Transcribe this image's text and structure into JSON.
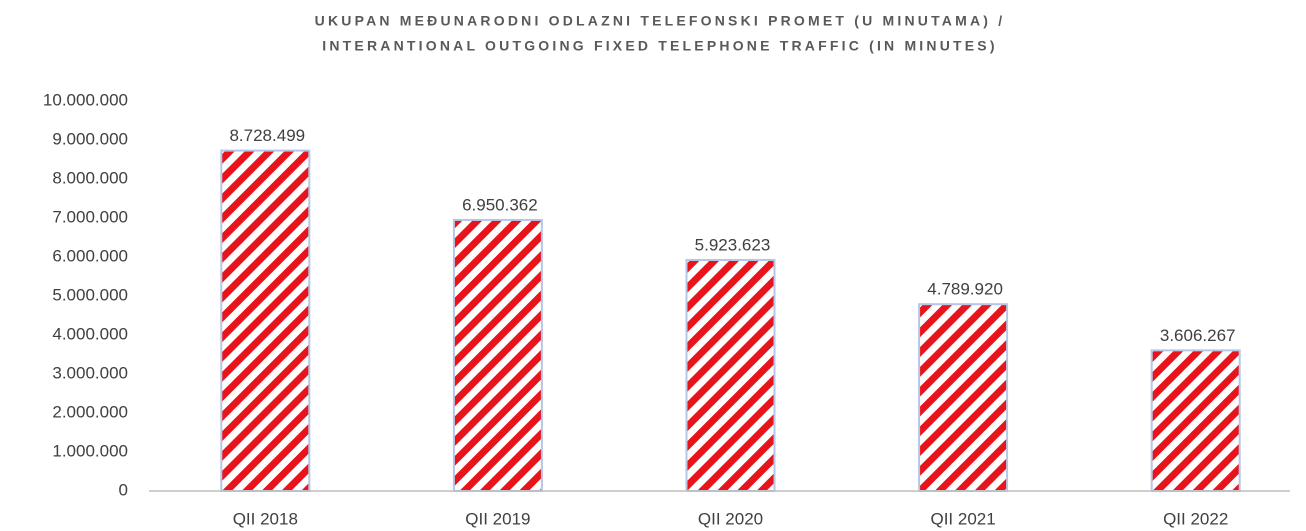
{
  "chart_data": {
    "type": "bar",
    "title": [
      "UKUPAN MEĐUNARODNI ODLAZNI TELEFONSKI PROMET (U MINUTAMA) /",
      "INTERANTIONAL OUTGOING FIXED TELEPHONE TRAFFIC (IN MINUTES)"
    ],
    "categories": [
      "QII 2018",
      "QII 2019",
      "QII 2020",
      "QII 2021",
      "QII 2022"
    ],
    "values": [
      8728499,
      6950362,
      5923623,
      4789920,
      3606267
    ],
    "value_labels": [
      "8.728.499",
      "6.950.362",
      "5.923.623",
      "4.789.920",
      "3.606.267"
    ],
    "color": "#e8141c",
    "ylim": [
      0,
      10000000
    ],
    "yticks": [
      0,
      {
        "value": 1000000,
        "label": "1.000.000"
      },
      {
        "value": 2000000,
        "label": "2.000.000"
      },
      {
        "value": 3000000,
        "label": "3.000.000"
      },
      {
        "value": 4000000,
        "label": "4.000.000"
      },
      {
        "value": 5000000,
        "label": "5.000.000"
      },
      {
        "value": 6000000,
        "label": "6.000.000"
      },
      {
        "value": 7000000,
        "label": "7.000.000"
      },
      {
        "value": 8000000,
        "label": "8.000.000"
      },
      {
        "value": 9000000,
        "label": "9.000.000"
      },
      {
        "value": 10000000,
        "label": "10.000.000"
      }
    ],
    "grid": false
  }
}
